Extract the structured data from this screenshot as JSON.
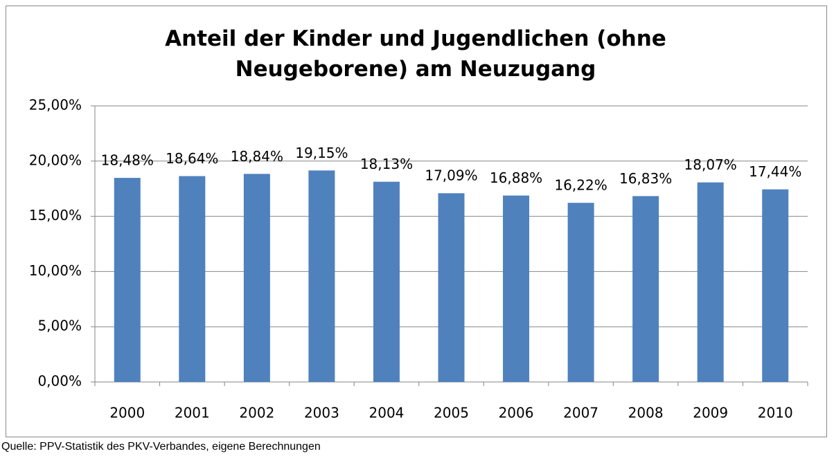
{
  "chart_data": {
    "type": "bar",
    "title": "Anteil der Kinder und Jugendlichen (ohne Neugeborene) am Neuzugang",
    "source": "Quelle: PPV-Statistik des PKV-Verbandes, eigene Berechnungen",
    "categories": [
      "2000",
      "2001",
      "2002",
      "2003",
      "2004",
      "2005",
      "2006",
      "2007",
      "2008",
      "2009",
      "2010"
    ],
    "values": [
      18.48,
      18.64,
      18.84,
      19.15,
      18.13,
      17.09,
      16.88,
      16.22,
      16.83,
      18.07,
      17.44
    ],
    "value_labels": [
      "18,48%",
      "18,64%",
      "18,84%",
      "19,15%",
      "18,13%",
      "17,09%",
      "16,88%",
      "16,22%",
      "16,83%",
      "18,07%",
      "17,44%"
    ],
    "color": "#4f81bd",
    "ylim": [
      0,
      25
    ],
    "yticks": [
      {
        "value": 0,
        "label": "0,00%"
      },
      {
        "value": 5,
        "label": "5,00%"
      },
      {
        "value": 10,
        "label": "10,00%"
      },
      {
        "value": 15,
        "label": "15,00%"
      },
      {
        "value": 20,
        "label": "20,00%"
      },
      {
        "value": 25,
        "label": "25,00%"
      }
    ],
    "grid": true
  }
}
